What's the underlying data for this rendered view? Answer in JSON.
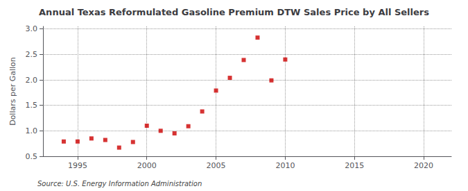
{
  "chart_data": {
    "type": "scatter",
    "title": "Annual Texas Reformulated Gasoline Premium DTW Sales Price by All Sellers",
    "ylabel": "Dollars per Gallon",
    "annotation": "Source: U.S. Energy Information Administration",
    "x": [
      1994,
      1995,
      1996,
      1997,
      1998,
      1999,
      2000,
      2001,
      2002,
      2003,
      2004,
      2005,
      2006,
      2007,
      2008,
      2009,
      2010
    ],
    "values": [
      0.79,
      0.79,
      0.85,
      0.82,
      0.67,
      0.78,
      1.1,
      1.0,
      0.95,
      1.09,
      1.38,
      1.79,
      2.04,
      2.39,
      2.83,
      1.99,
      2.4
    ],
    "color": "#cc0000",
    "marker": "square",
    "xlim": [
      1992.5,
      2022
    ],
    "ylim": [
      0.5,
      3.05
    ],
    "xticks": [
      1995,
      2000,
      2005,
      2010,
      2015,
      2020
    ],
    "yticks": [
      0.5,
      {
        "value": 1.0,
        "label": "1.0"
      },
      1.5,
      {
        "value": 2.0,
        "label": "2.0"
      },
      2.5,
      {
        "value": 3.0,
        "label": "3.0"
      }
    ],
    "grid": true
  }
}
